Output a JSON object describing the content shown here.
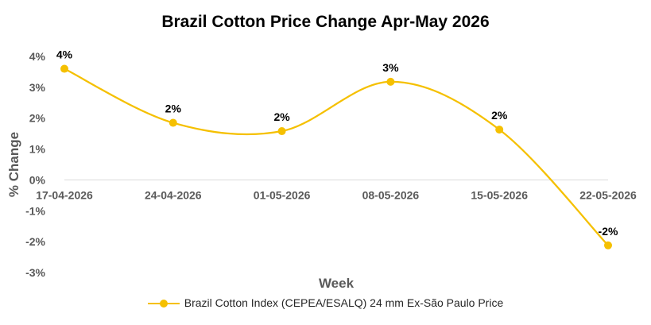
{
  "chart_data": {
    "type": "line",
    "title": "Brazil Cotton Price Change Apr-May 2026",
    "xlabel": "Week",
    "ylabel": "% Change",
    "categories": [
      "17-04-2026",
      "24-04-2026",
      "01-05-2026",
      "08-05-2026",
      "15-05-2026",
      "22-05-2026"
    ],
    "series": [
      {
        "name": "Brazil Cotton Index (CEPEA/ESALQ) 24 mm Ex-São Paulo Price",
        "values": [
          3.6,
          1.85,
          1.58,
          3.18,
          1.63,
          -2.12
        ],
        "labels": [
          "4%",
          "2%",
          "2%",
          "3%",
          "2%",
          "-2%"
        ],
        "color": "#F5C000"
      }
    ],
    "ylim": [
      -3,
      4
    ],
    "yticks": [
      "-3%",
      "-2%",
      "-1%",
      "0%",
      "1%",
      "2%",
      "3%",
      "4%"
    ],
    "grid": false,
    "legend": "bottom",
    "smooth": true
  }
}
